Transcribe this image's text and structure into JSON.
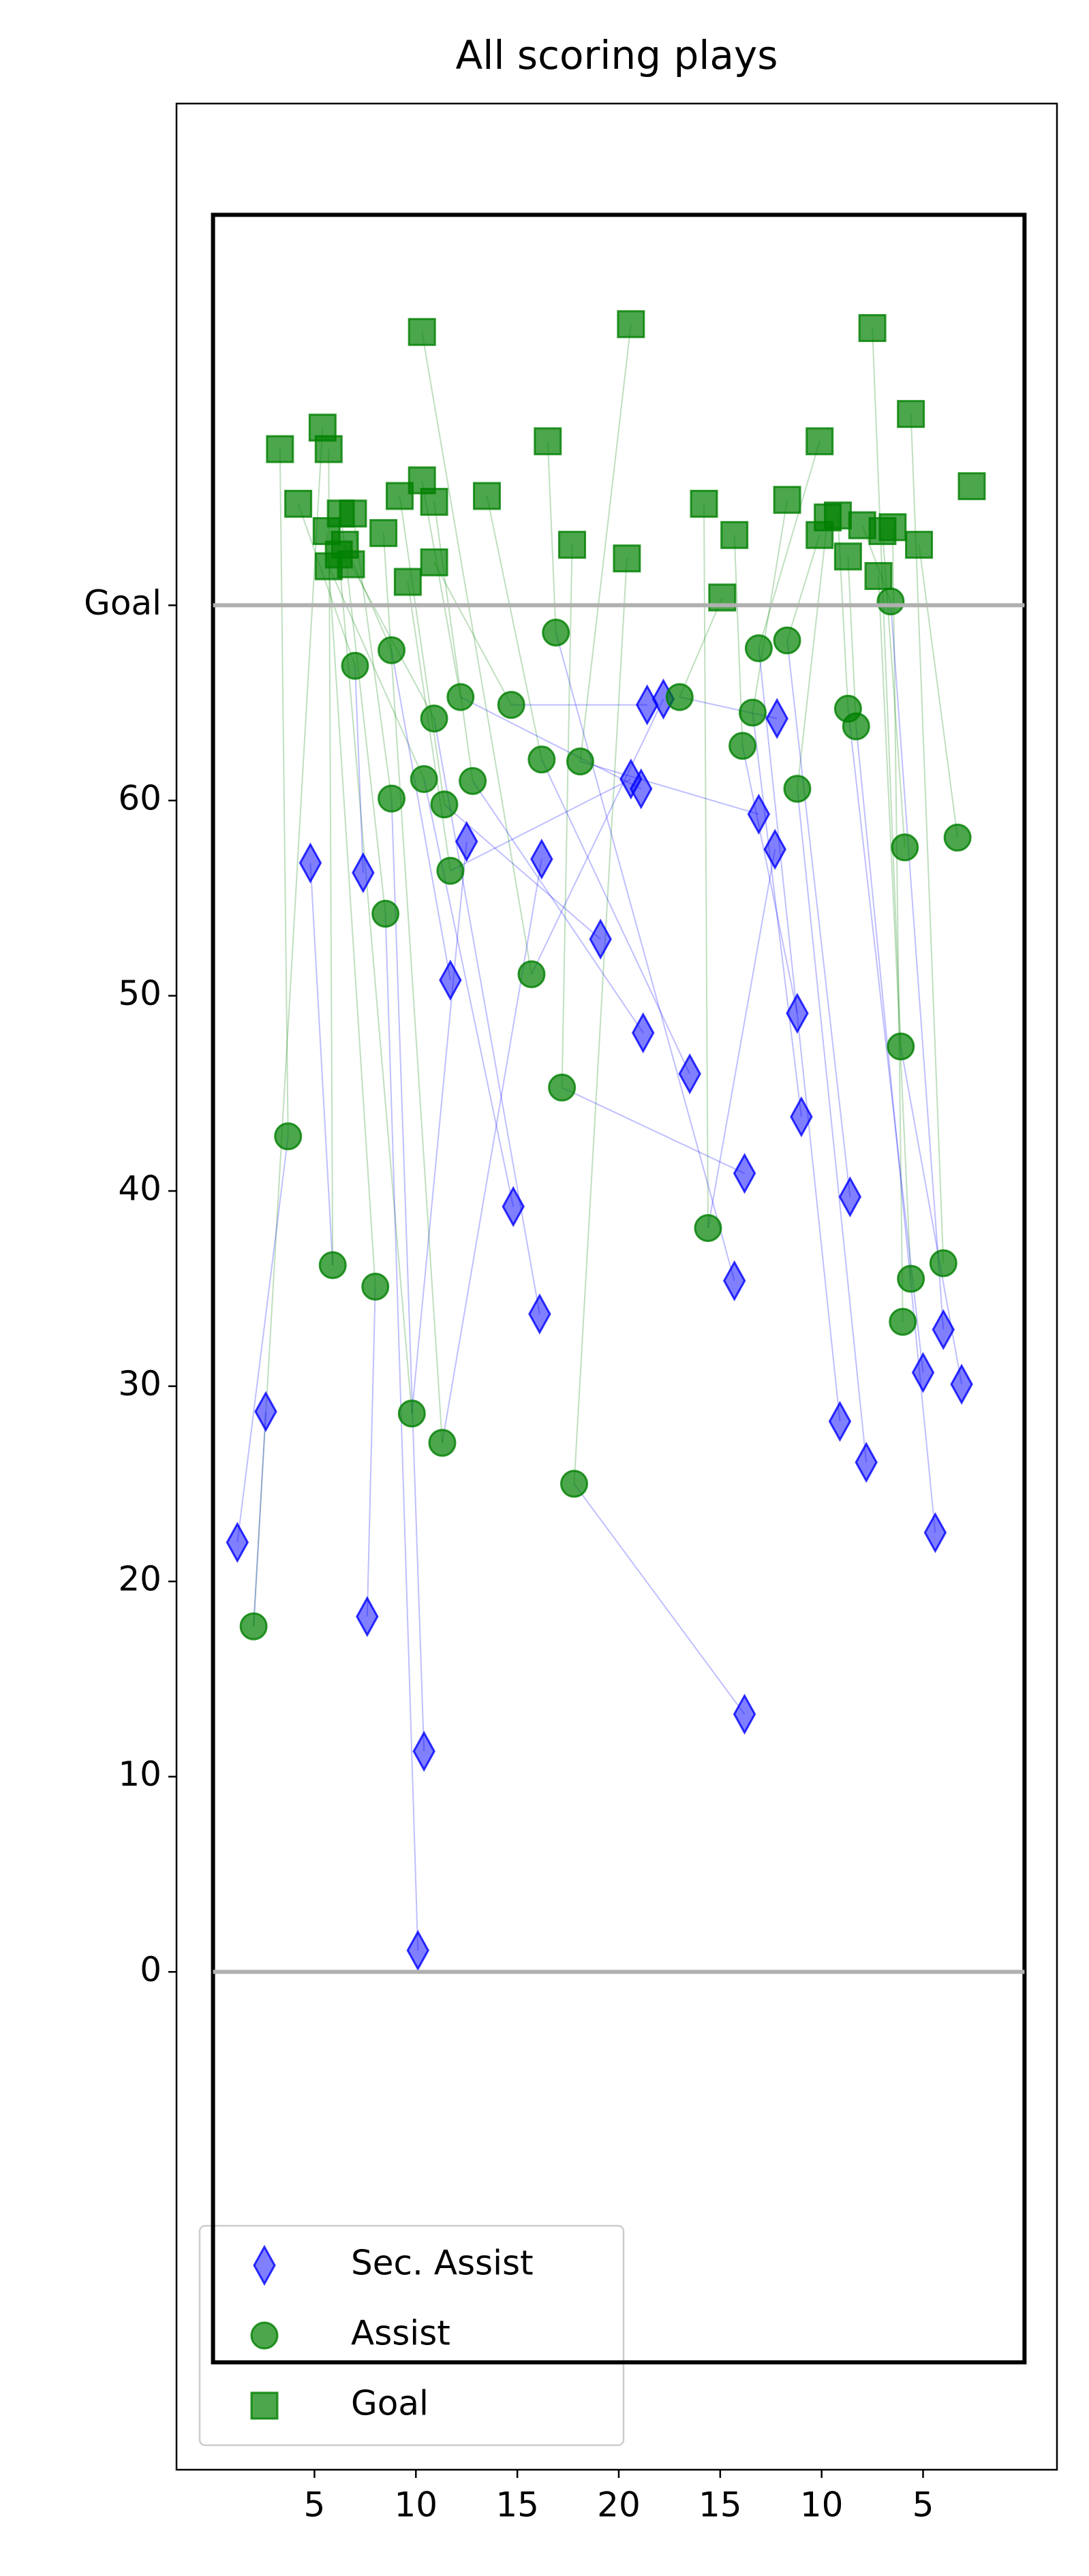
{
  "chart_data": {
    "type": "scatter",
    "title": "All scoring plays",
    "xlim": [
      -1.8,
      41.6
    ],
    "ylim": [
      -25.5,
      95.7
    ],
    "xticks": [
      5,
      10,
      15,
      20,
      {
        "value": 25,
        "label": "15"
      },
      {
        "value": 30,
        "label": "10"
      },
      {
        "value": 35,
        "label": "5"
      }
    ],
    "yticks": [
      0,
      10,
      20,
      30,
      40,
      50,
      60,
      {
        "value": 70,
        "label": "Goal"
      }
    ],
    "rink": {
      "x": [
        0,
        40
      ],
      "y": [
        -20,
        90
      ]
    },
    "hlines": [
      0,
      70
    ],
    "legend": "lower left",
    "series": [
      {
        "name": "Sec. Assist",
        "color": "blue",
        "marker": "diamond",
        "x": [
          1.2,
          2.6,
          4.8,
          7.4,
          7.6,
          10.1,
          10.4,
          11.7,
          12.5,
          14.8,
          16.1,
          16.2,
          19.1,
          20.6,
          21.1,
          21.2,
          21.4,
          22.2,
          23.5,
          25.7,
          26.2,
          26.2,
          26.9,
          27.8,
          27.7,
          28.8,
          29.0,
          30.9,
          31.4,
          32.2,
          35.0,
          35.6,
          36.0,
          36.9
        ],
        "values": [
          22.0,
          28.7,
          56.8,
          56.3,
          18.2,
          1.1,
          11.3,
          50.8,
          57.9,
          39.2,
          33.7,
          57.0,
          52.9,
          61.1,
          60.6,
          48.1,
          64.9,
          65.2,
          46.0,
          35.4,
          40.9,
          13.2,
          59.3,
          64.2,
          57.5,
          49.1,
          43.8,
          28.2,
          39.7,
          26.1,
          30.7,
          22.5,
          32.9,
          30.1
        ]
      },
      {
        "name": "Assist",
        "color": "green",
        "marker": "circle",
        "x": [
          3.7,
          2.0,
          5.9,
          7.0,
          8.0,
          8.5,
          8.8,
          8.8,
          9.8,
          10.4,
          10.9,
          11.3,
          11.4,
          11.7,
          12.2,
          12.8,
          14.7,
          15.7,
          16.2,
          16.9,
          17.2,
          17.8,
          18.1,
          23.0,
          24.4,
          26.1,
          26.6,
          26.9,
          28.3,
          28.8,
          31.3,
          31.7,
          33.4,
          33.9,
          34.1,
          34.0,
          34.4,
          36.0,
          36.7
        ],
        "values": [
          42.8,
          17.7,
          36.2,
          66.9,
          35.1,
          54.2,
          60.1,
          67.7,
          28.6,
          61.1,
          64.2,
          27.1,
          59.8,
          56.4,
          65.3,
          61.0,
          64.9,
          51.1,
          62.1,
          68.6,
          45.3,
          25.0,
          62.0,
          65.3,
          38.1,
          62.8,
          64.5,
          67.8,
          68.2,
          60.6,
          64.7,
          63.8,
          70.2,
          47.4,
          57.6,
          33.3,
          35.5,
          36.3,
          58.1
        ]
      },
      {
        "name": "Goal",
        "color": "green",
        "marker": "square",
        "x": [
          3.3,
          5.4,
          5.7,
          4.2,
          5.6,
          6.3,
          6.9,
          6.5,
          6.2,
          5.7,
          6.8,
          8.4,
          9.2,
          9.6,
          10.3,
          10.9,
          10.9,
          10.3,
          13.5,
          16.5,
          17.7,
          20.4,
          20.6,
          25.1,
          24.2,
          25.7,
          28.3,
          29.9,
          29.9,
          30.3,
          30.8,
          31.3,
          32.0,
          32.5,
          33.0,
          33.5,
          32.8,
          34.4,
          34.8,
          37.4
        ],
        "values": [
          78.0,
          79.1,
          78.0,
          75.2,
          73.8,
          74.7,
          74.7,
          73.1,
          72.6,
          72.0,
          72.1,
          73.7,
          75.6,
          71.2,
          76.4,
          75.3,
          72.2,
          84.0,
          75.6,
          78.4,
          73.1,
          72.4,
          84.4,
          70.4,
          75.2,
          73.6,
          75.4,
          78.4,
          73.6,
          74.5,
          74.6,
          72.5,
          74.1,
          84.2,
          73.8,
          74.0,
          71.5,
          79.8,
          73.1,
          76.1
        ]
      }
    ]
  }
}
